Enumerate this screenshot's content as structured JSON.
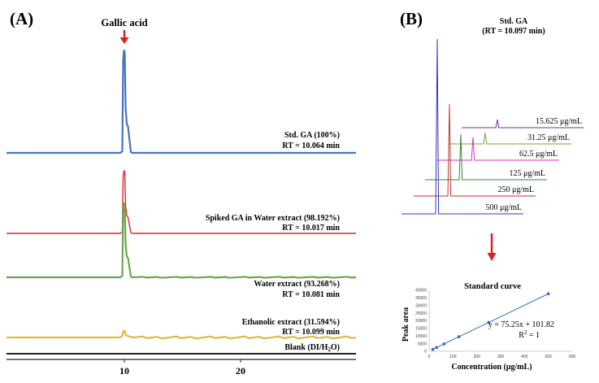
{
  "panel_a": {
    "label": "(A)",
    "arrow_label": "Gallic acid",
    "x_ticks": [
      "10",
      "20"
    ],
    "blank_label": "Blank (DI/H",
    "blank_sub": "2",
    "blank_suffix": "O)",
    "traces": [
      {
        "name": "Std. GA (100%)",
        "rt": "RT = 10.064 min",
        "color": "#4a72c4"
      },
      {
        "name": "Spiked GA in Water extract (98.192%)",
        "rt": "RT = 10.017 min",
        "color": "#d82a2a"
      },
      {
        "name": "Water extract (93.268%)",
        "rt": "RT = 10.081 min",
        "color": "#6aa84f"
      },
      {
        "name": "Ethanolic extract (31.594%)",
        "rt": "RT = 10.099 min",
        "color": "#e0b94a"
      }
    ]
  },
  "panel_b": {
    "label": "(B)",
    "title": "Std. GA",
    "rt": "(RT = 10.097 min)",
    "stack": [
      {
        "label": "15.625 μg/mL",
        "color": "#7030a0"
      },
      {
        "label": "31.25 μg/mL",
        "color": "#7ea33a"
      },
      {
        "label": "62.5 μg/mL",
        "color": "#cc33cc"
      },
      {
        "label": "125 μg/mL",
        "color": "#2e8b2e"
      },
      {
        "label": "250 μg/mL",
        "color": "#c0392b"
      },
      {
        "label": "500 μg/mL",
        "color": "#3333cc"
      }
    ]
  },
  "chart_data": {
    "type": "scatter",
    "title": "Standard curve",
    "xlabel": "Concentration (μg/mL)",
    "ylabel": "Peak area",
    "xlim": [
      0,
      600
    ],
    "ylim": [
      0,
      40000
    ],
    "x_ticks": [
      "0",
      "100",
      "200",
      "300",
      "400",
      "500",
      "600"
    ],
    "y_ticks": [
      "0",
      "5000",
      "10000",
      "15000",
      "20000",
      "25000",
      "30000",
      "35000",
      "40000"
    ],
    "x": [
      15.625,
      31.25,
      62.5,
      125,
      250,
      500
    ],
    "y": [
      1278,
      2454,
      4805,
      9508,
      18914,
      37727
    ],
    "equation": "y = 75.25x + 101.82",
    "r2_prefix": "R",
    "r2_sup": "2",
    "r2_suffix": " = 1",
    "color": "#3c6fb5"
  }
}
